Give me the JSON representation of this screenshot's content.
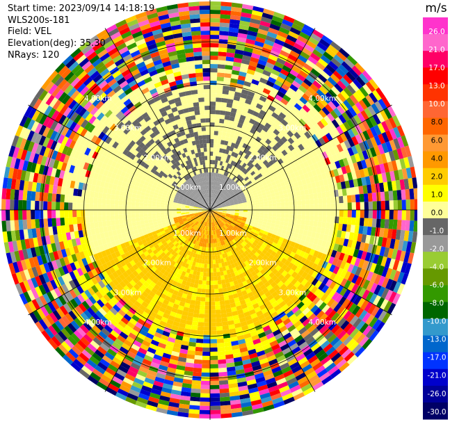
{
  "header": {
    "start_time": "Start time: 2023/09/14 14:18:19",
    "instrument": "WLS200s-181",
    "field": "Field: VEL",
    "elevation": "Elevation(deg): 35.30",
    "nrays": "NRays: 120"
  },
  "colorbar": {
    "unit": "m/s",
    "ticks": [
      "26.0",
      "21.0",
      "17.0",
      "13.0",
      "10.0",
      "8.0",
      "6.0",
      "4.0",
      "2.0",
      "1.0",
      "0.0",
      "-1.0",
      "-2.0",
      "-4.0",
      "-6.0",
      "-8.0",
      "-10.0",
      "-13.0",
      "-17.0",
      "-21.0",
      "-26.0",
      "-30.0"
    ],
    "colors": [
      "#ff33cc",
      "#ff66cc",
      "#ff0066",
      "#ff0000",
      "#ff3300",
      "#ff6633",
      "#ff6600",
      "#ff9933",
      "#ff9900",
      "#ffcc00",
      "#ffff00",
      "#ffff99",
      "#666666",
      "#999999",
      "#99cc33",
      "#669900",
      "#339900",
      "#006600",
      "#3399cc",
      "#0066cc",
      "#0033ff",
      "#0000cc",
      "#000099",
      "#000066"
    ]
  },
  "chart_data": {
    "type": "heatmap",
    "title": "",
    "field": "VEL",
    "units": "m/s",
    "projection": "polar PPI (plan position indicator)",
    "rays": 120,
    "elevation_deg": 35.3,
    "range_rings_km": [
      1.0,
      2.0,
      3.0,
      4.0
    ],
    "ring_labels": [
      "1.00km",
      "2.00km",
      "3.00km",
      "4.00km"
    ],
    "vmin": -30.0,
    "vmax": 26.0,
    "velocity_structure": [
      {
        "region": "north, range 0-1 km",
        "value_ms": -6.0
      },
      {
        "region": "north, range 1-3 km",
        "value_ms": -2.0
      },
      {
        "region": "east/west, range 1-3 km",
        "value_ms": -1.0
      },
      {
        "region": "south, range 0-3 km",
        "value_ms": 2.0
      },
      {
        "region": "south, range 0-1 km",
        "value_ms": 4.0
      },
      {
        "region": "range > 3 km",
        "value_ms": "noise (all bins)"
      }
    ],
    "grid": true
  }
}
